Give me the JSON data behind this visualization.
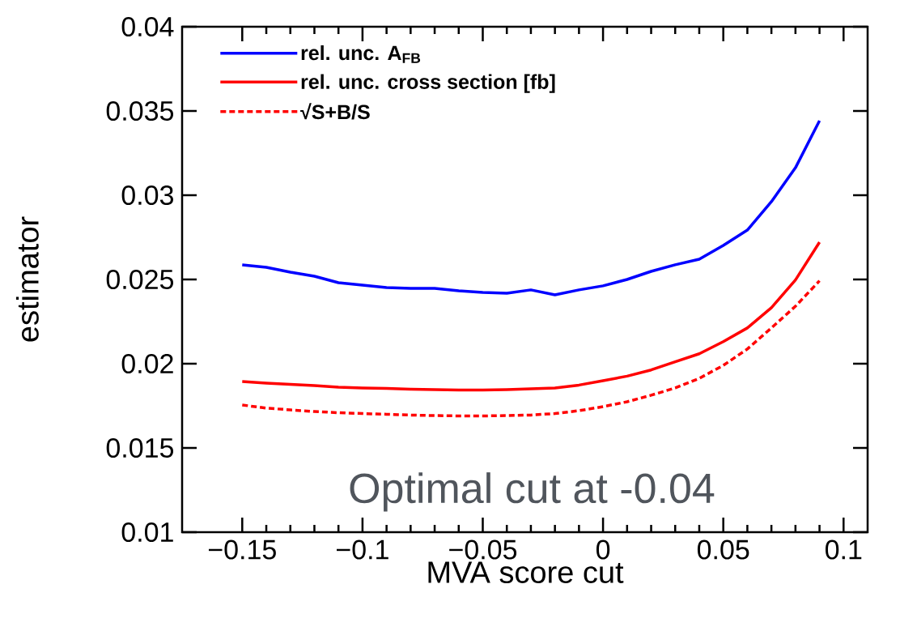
{
  "chart_data": {
    "type": "line",
    "xlabel": "MVA score cut",
    "ylabel": "estimator",
    "x": [
      -0.15,
      -0.14,
      -0.13,
      -0.12,
      -0.11,
      -0.1,
      -0.09,
      -0.08,
      -0.07,
      -0.06,
      -0.05,
      -0.04,
      -0.03,
      -0.02,
      -0.01,
      0,
      0.01,
      0.02,
      0.03,
      0.04,
      0.05,
      0.06,
      0.07,
      0.08,
      0.09
    ],
    "series": [
      {
        "name": "rel. unc. A$_{FB}$",
        "color": "#0000ff",
        "line_style": "solid",
        "values": [
          0.02587,
          0.02572,
          0.02543,
          0.02519,
          0.02481,
          0.02466,
          0.02452,
          0.02447,
          0.02447,
          0.02433,
          0.02423,
          0.02418,
          0.02438,
          0.02409,
          0.02438,
          0.02462,
          0.025,
          0.02548,
          0.02587,
          0.0262,
          0.02702,
          0.02793,
          0.02962,
          0.03163,
          0.03442
        ]
      },
      {
        "name": "rel. unc. cross section [fb]",
        "color": "#ff0000",
        "line_style": "solid",
        "values": [
          0.01894,
          0.01885,
          0.01877,
          0.0187,
          0.01861,
          0.01856,
          0.01853,
          0.01849,
          0.01846,
          0.01844,
          0.01844,
          0.01846,
          0.01851,
          0.01856,
          0.01873,
          0.01899,
          0.01926,
          0.01963,
          0.02011,
          0.02059,
          0.02131,
          0.02212,
          0.02332,
          0.02497,
          0.02721
        ]
      },
      {
        "name": "√S+B/S",
        "color": "#ff0000",
        "line_style": "dotted",
        "values": [
          0.01755,
          0.01736,
          0.01726,
          0.01716,
          0.01709,
          0.01704,
          0.017,
          0.01695,
          0.01692,
          0.0169,
          0.0169,
          0.01692,
          0.01695,
          0.01704,
          0.01721,
          0.01745,
          0.01774,
          0.01813,
          0.01856,
          0.01913,
          0.0199,
          0.02087,
          0.02212,
          0.02341,
          0.02492
        ]
      }
    ],
    "xlim": [
      -0.175,
      0.11
    ],
    "ylim": [
      0.01,
      0.04
    ],
    "xticks": [
      {
        "value": -0.15,
        "label": "−0.15"
      },
      {
        "value": -0.1,
        "label": "−0.1"
      },
      {
        "value": -0.05,
        "label": "−0.05"
      },
      0,
      0.05,
      0.1
    ],
    "yticks": [
      0.01,
      0.015,
      0.02,
      0.025,
      0.03,
      0.035,
      0.04
    ],
    "annotations": [
      "Optimal cut at -0.04"
    ],
    "legend": "top left",
    "grid": false,
    "marker": "none"
  }
}
